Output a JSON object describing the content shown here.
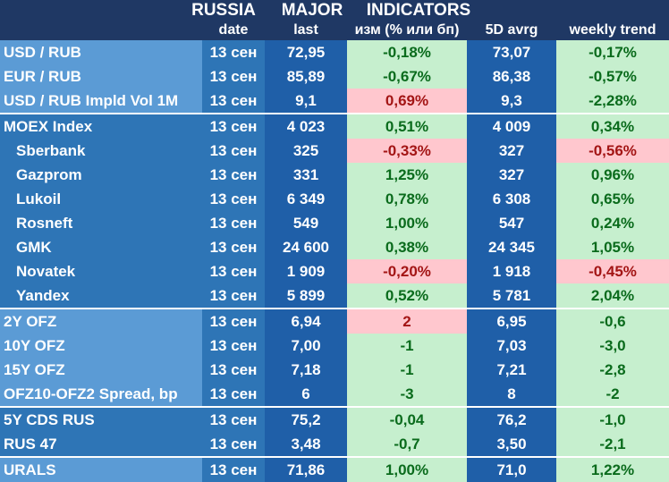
{
  "title": [
    "RUSSIA",
    "MAJOR",
    "INDICATORS"
  ],
  "headers": {
    "date": "date",
    "last": "last",
    "change": "изм (% или бп)",
    "avg": "5D avrg",
    "trend": "weekly trend"
  },
  "colors": {
    "header_bg": "#1f3864",
    "name_light": "#5b9bd5",
    "name_dark": "#2e75b6",
    "date_bg": "#2e75b6",
    "last_bg": "#1f5fa8",
    "pos_bg": "#c6efce",
    "neg_bg": "#ffc7ce",
    "pos_text": "#0a6b1c",
    "neg_text": "#a31515"
  },
  "rows": [
    {
      "name": "USD / RUB",
      "date": "13 сен",
      "last": "72,95",
      "change": "-0,18%",
      "avg": "73,07",
      "trend": "-0,17%",
      "band": "light",
      "indent": false,
      "change_neg": false,
      "trend_neg": false
    },
    {
      "name": "EUR / RUB",
      "date": "13 сен",
      "last": "85,89",
      "change": "-0,67%",
      "avg": "86,38",
      "trend": "-0,57%",
      "band": "light",
      "indent": false,
      "change_neg": false,
      "trend_neg": false
    },
    {
      "name": "USD / RUB Impld Vol 1M",
      "date": "13 сен",
      "last": "9,1",
      "change": "0,69%",
      "avg": "9,3",
      "trend": "-2,28%",
      "band": "light",
      "indent": false,
      "change_neg": true,
      "trend_neg": false
    },
    {
      "name": "MOEX Index",
      "date": "13 сен",
      "last": "4 023",
      "change": "0,51%",
      "avg": "4 009",
      "trend": "0,34%",
      "band": "dark",
      "indent": false,
      "change_neg": false,
      "trend_neg": false
    },
    {
      "name": "Sberbank",
      "date": "13 сен",
      "last": "325",
      "change": "-0,33%",
      "avg": "327",
      "trend": "-0,56%",
      "band": "dark",
      "indent": true,
      "change_neg": true,
      "trend_neg": true
    },
    {
      "name": "Gazprom",
      "date": "13 сен",
      "last": "331",
      "change": "1,25%",
      "avg": "327",
      "trend": "0,96%",
      "band": "dark",
      "indent": true,
      "change_neg": false,
      "trend_neg": false
    },
    {
      "name": "Lukoil",
      "date": "13 сен",
      "last": "6 349",
      "change": "0,78%",
      "avg": "6 308",
      "trend": "0,65%",
      "band": "dark",
      "indent": true,
      "change_neg": false,
      "trend_neg": false
    },
    {
      "name": "Rosneft",
      "date": "13 сен",
      "last": "549",
      "change": "1,00%",
      "avg": "547",
      "trend": "0,24%",
      "band": "dark",
      "indent": true,
      "change_neg": false,
      "trend_neg": false
    },
    {
      "name": "GMK",
      "date": "13 сен",
      "last": "24 600",
      "change": "0,38%",
      "avg": "24 345",
      "trend": "1,05%",
      "band": "dark",
      "indent": true,
      "change_neg": false,
      "trend_neg": false
    },
    {
      "name": "Novatek",
      "date": "13 сен",
      "last": "1 909",
      "change": "-0,20%",
      "avg": "1 918",
      "trend": "-0,45%",
      "band": "dark",
      "indent": true,
      "change_neg": true,
      "trend_neg": true
    },
    {
      "name": "Yandex",
      "date": "13 сен",
      "last": "5 899",
      "change": "0,52%",
      "avg": "5 781",
      "trend": "2,04%",
      "band": "dark",
      "indent": true,
      "change_neg": false,
      "trend_neg": false
    },
    {
      "name": "2Y OFZ",
      "date": "13 сен",
      "last": "6,94",
      "change": "2",
      "avg": "6,95",
      "trend": "-0,6",
      "band": "light",
      "indent": false,
      "change_neg": true,
      "trend_neg": false
    },
    {
      "name": "10Y OFZ",
      "date": "13 сен",
      "last": "7,00",
      "change": "-1",
      "avg": "7,03",
      "trend": "-3,0",
      "band": "light",
      "indent": false,
      "change_neg": false,
      "trend_neg": false
    },
    {
      "name": "15Y OFZ",
      "date": "13 сен",
      "last": "7,18",
      "change": "-1",
      "avg": "7,21",
      "trend": "-2,8",
      "band": "light",
      "indent": false,
      "change_neg": false,
      "trend_neg": false
    },
    {
      "name": "OFZ10-OFZ2 Spread, bp",
      "date": "13 сен",
      "last": "6",
      "change": "-3",
      "avg": "8",
      "trend": "-2",
      "band": "light",
      "indent": false,
      "change_neg": false,
      "trend_neg": false
    },
    {
      "name": "5Y CDS RUS",
      "date": "13 сен",
      "last": "75,2",
      "change": "-0,04",
      "avg": "76,2",
      "trend": "-1,0",
      "band": "dark",
      "indent": false,
      "change_neg": false,
      "trend_neg": false
    },
    {
      "name": "RUS 47",
      "date": "13 сен",
      "last": "3,48",
      "change": "-0,7",
      "avg": "3,50",
      "trend": "-2,1",
      "band": "dark",
      "indent": false,
      "change_neg": false,
      "trend_neg": false
    },
    {
      "name": "URALS",
      "date": "13 сен",
      "last": "71,86",
      "change": "1,00%",
      "avg": "71,0",
      "trend": "1,22%",
      "band": "light",
      "indent": false,
      "change_neg": false,
      "trend_neg": false
    }
  ]
}
